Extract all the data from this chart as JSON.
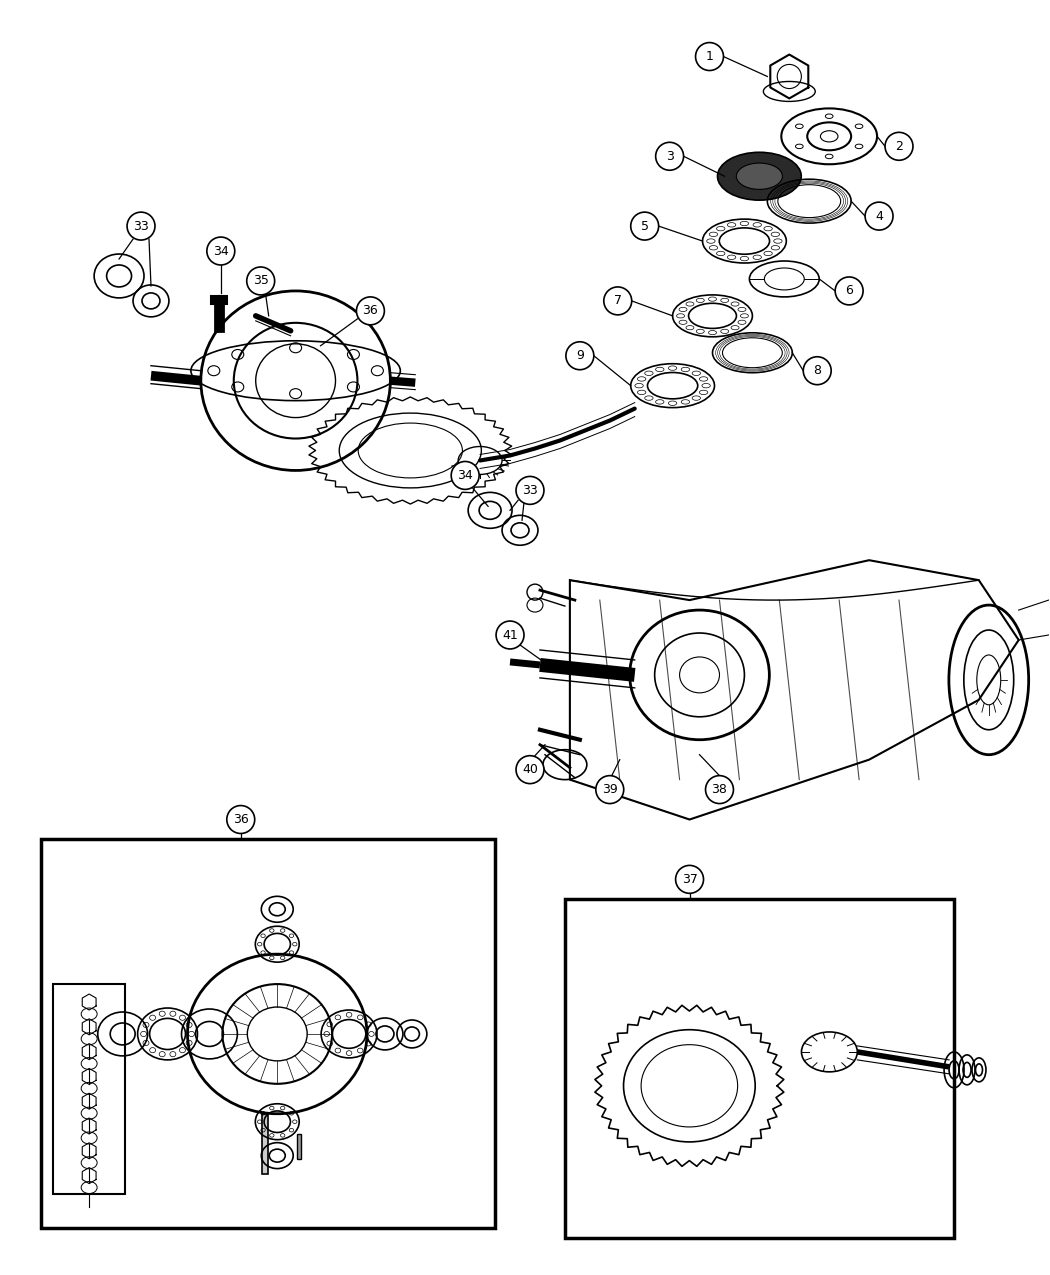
{
  "background_color": "#ffffff",
  "line_color": "#000000",
  "figure_width": 10.5,
  "figure_height": 12.75,
  "dpi": 100
}
